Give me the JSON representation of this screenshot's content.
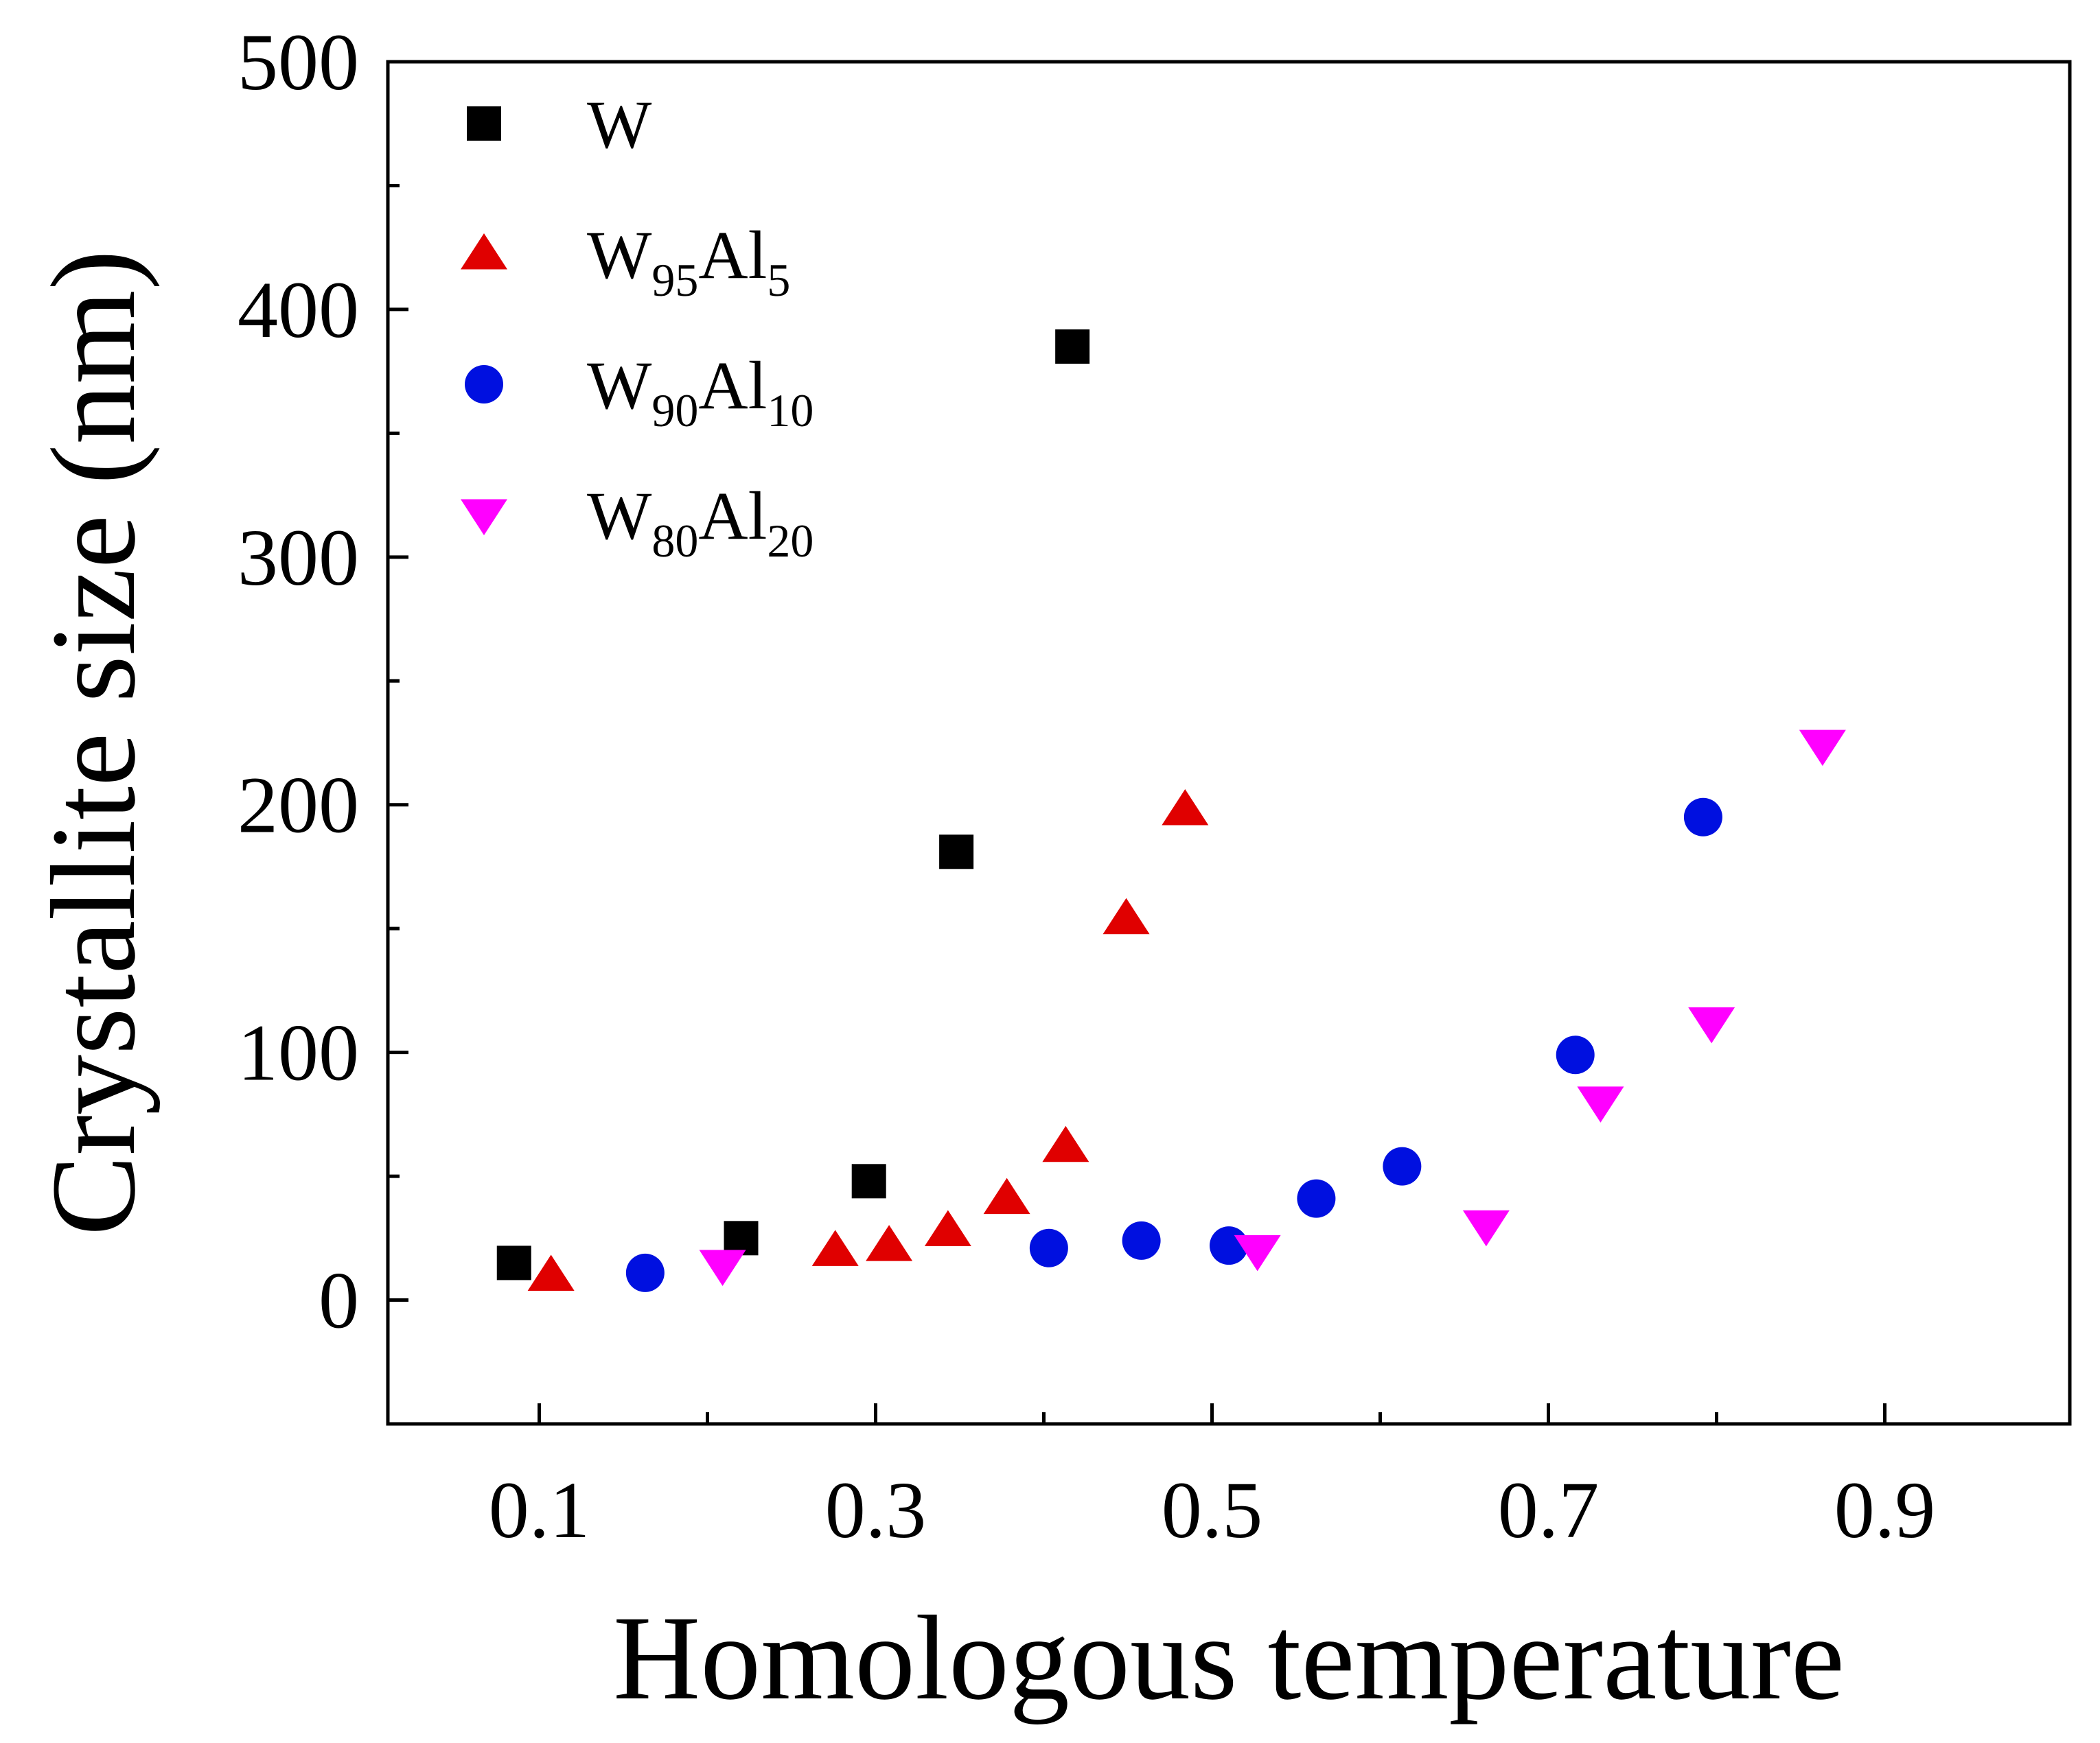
{
  "chart_data": {
    "type": "scatter",
    "title": "",
    "xlabel": "Homologous temperature",
    "ylabel": "Crystallite size (nm)",
    "xlim": [
      0.01,
      1.01
    ],
    "ylim": [
      -50,
      500
    ],
    "xticks": [
      0.1,
      0.3,
      0.5,
      0.7,
      0.9
    ],
    "xtick_labels": [
      "0.1",
      "0.3",
      "0.5",
      "0.7",
      "0.9"
    ],
    "yticks": [
      0,
      100,
      200,
      300,
      400,
      500
    ],
    "ytick_labels": [
      "0",
      "100",
      "200",
      "300",
      "400",
      "500"
    ],
    "grid": false,
    "legend_position": "top-left",
    "series": [
      {
        "name": "W",
        "label_main": "W",
        "label_parts": [],
        "marker": "square",
        "color": "#000000",
        "points": [
          [
            0.085,
            15
          ],
          [
            0.22,
            25
          ],
          [
            0.296,
            48
          ],
          [
            0.348,
            181
          ],
          [
            0.417,
            385
          ]
        ]
      },
      {
        "name": "W95Al5",
        "label_main": "W",
        "label_parts": [
          {
            "text": "95",
            "sub": true
          },
          {
            "text": "Al",
            "sub": false
          },
          {
            "text": "5",
            "sub": true
          }
        ],
        "marker": "triangle-up",
        "color": "#e00000",
        "points": [
          [
            0.107,
            10
          ],
          [
            0.276,
            20
          ],
          [
            0.308,
            22
          ],
          [
            0.343,
            28
          ],
          [
            0.378,
            41
          ],
          [
            0.413,
            62
          ],
          [
            0.449,
            154
          ],
          [
            0.484,
            198
          ]
        ]
      },
      {
        "name": "W90Al10",
        "label_main": "W",
        "label_parts": [
          {
            "text": "90",
            "sub": true
          },
          {
            "text": "Al",
            "sub": false
          },
          {
            "text": "10",
            "sub": true
          }
        ],
        "marker": "circle",
        "color": "#0010e0",
        "points": [
          [
            0.163,
            11
          ],
          [
            0.403,
            21
          ],
          [
            0.458,
            24
          ],
          [
            0.51,
            22
          ],
          [
            0.562,
            41
          ],
          [
            0.613,
            54
          ],
          [
            0.716,
            99
          ],
          [
            0.792,
            195
          ]
        ]
      },
      {
        "name": "W80Al20",
        "label_main": "W",
        "label_parts": [
          {
            "text": "80",
            "sub": true
          },
          {
            "text": "Al",
            "sub": false
          },
          {
            "text": "20",
            "sub": true
          }
        ],
        "marker": "triangle-down",
        "color": "#ff00ff",
        "points": [
          [
            0.209,
            14
          ],
          [
            0.527,
            20
          ],
          [
            0.663,
            30
          ],
          [
            0.731,
            80
          ],
          [
            0.797,
            112
          ],
          [
            0.863,
            224
          ]
        ]
      }
    ]
  }
}
